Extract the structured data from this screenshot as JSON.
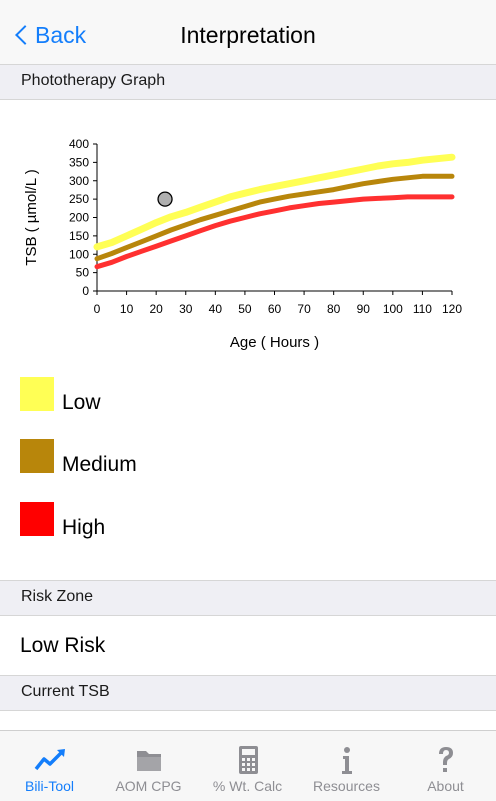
{
  "nav": {
    "back_label": "Back",
    "title": "Interpretation"
  },
  "sections": {
    "phototherapy": "Phototherapy Graph",
    "risk_zone": "Risk Zone",
    "current_tsb": "Current TSB"
  },
  "risk_zone_value": "Low Risk",
  "chart_data": {
    "type": "line",
    "xlabel": "Age ( Hours )",
    "ylabel": "TSB ( µmol/L )",
    "xlim": [
      0,
      120
    ],
    "ylim": [
      0,
      400
    ],
    "xticks": [
      0,
      10,
      20,
      30,
      40,
      50,
      60,
      70,
      80,
      90,
      100,
      110,
      120
    ],
    "yticks": [
      0,
      50,
      100,
      150,
      200,
      250,
      300,
      350,
      400
    ],
    "grid": false,
    "x": [
      0,
      5,
      10,
      15,
      20,
      25,
      30,
      35,
      40,
      45,
      50,
      55,
      60,
      65,
      70,
      75,
      80,
      85,
      90,
      95,
      100,
      105,
      110,
      115,
      120
    ],
    "series": [
      {
        "color": "#ffff55",
        "values": [
          120,
          132,
          150,
          168,
          186,
          202,
          214,
          228,
          242,
          256,
          266,
          276,
          284,
          292,
          300,
          308,
          316,
          324,
          332,
          340,
          346,
          350,
          356,
          360,
          364
        ]
      },
      {
        "color": "#b8860b",
        "values": [
          88,
          102,
          118,
          134,
          150,
          166,
          180,
          194,
          206,
          218,
          230,
          242,
          250,
          258,
          264,
          270,
          276,
          284,
          292,
          298,
          304,
          308,
          312,
          312,
          312
        ]
      },
      {
        "color": "#ff3030",
        "values": [
          66,
          78,
          94,
          108,
          122,
          136,
          150,
          164,
          178,
          190,
          200,
          210,
          218,
          226,
          232,
          238,
          242,
          246,
          250,
          252,
          254,
          256,
          256,
          256,
          256
        ]
      }
    ],
    "points": [
      {
        "x": 23,
        "y": 250,
        "color": "#b0b0b0"
      }
    ]
  },
  "legend": [
    {
      "label": "Low",
      "color": "#ffff55"
    },
    {
      "label": "Medium",
      "color": "#b8860b"
    },
    {
      "label": "High",
      "color": "#ff0000"
    }
  ],
  "tabs": [
    {
      "label": "Bili-Tool",
      "icon": "trend-arrow-icon",
      "active": true
    },
    {
      "label": "AOM CPG",
      "icon": "folder-icon",
      "active": false
    },
    {
      "label": "% Wt. Calc",
      "icon": "calculator-icon",
      "active": false
    },
    {
      "label": "Resources",
      "icon": "info-icon",
      "active": false
    },
    {
      "label": "About",
      "icon": "question-mark-icon",
      "active": false
    }
  ]
}
